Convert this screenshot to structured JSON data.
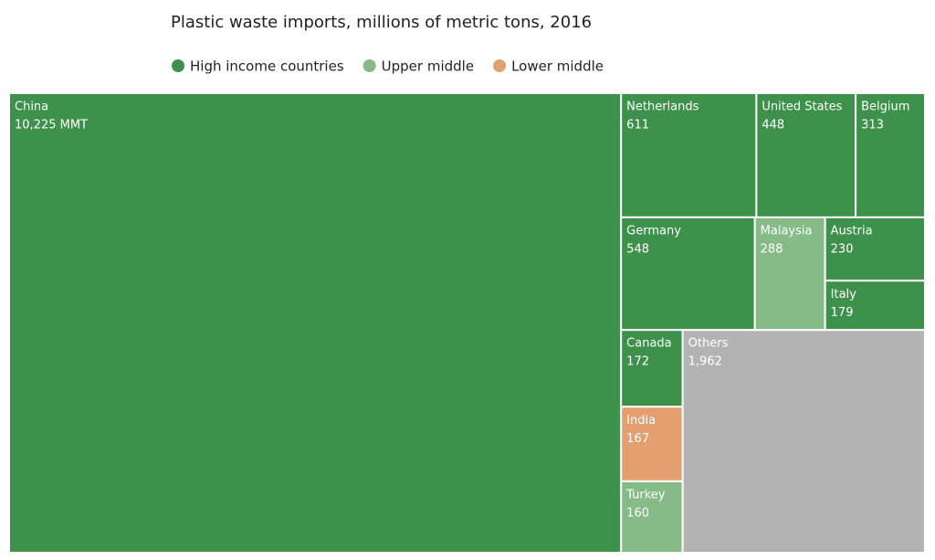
{
  "chart_data": {
    "type": "treemap",
    "title": "Plastic waste imports, millions of metric tons, 2016",
    "legend": [
      {
        "name": "High income countries",
        "color": "#3d914b"
      },
      {
        "name": "Upper middle",
        "color": "#86bb87"
      },
      {
        "name": "Lower middle",
        "color": "#e39f6f"
      }
    ],
    "categories": [
      "China",
      "Netherlands",
      "United States",
      "Belgium",
      "Germany",
      "Malaysia",
      "Austria",
      "Italy",
      "Canada",
      "India",
      "Turkey",
      "Others"
    ],
    "values": [
      10225,
      611,
      448,
      313,
      548,
      288,
      230,
      179,
      172,
      167,
      160,
      1962
    ],
    "value_labels": [
      "10,225 MMT",
      "611",
      "448",
      "313",
      "548",
      "288",
      "230",
      "179",
      "172",
      "167",
      "160",
      "1,962"
    ],
    "colors": [
      "#3d914b",
      "#3d914b",
      "#3d914b",
      "#3d914b",
      "#3d914b",
      "#86bb87",
      "#3d914b",
      "#3d914b",
      "#3d914b",
      "#e39f6f",
      "#86bb87",
      "#b3b3b3"
    ]
  }
}
